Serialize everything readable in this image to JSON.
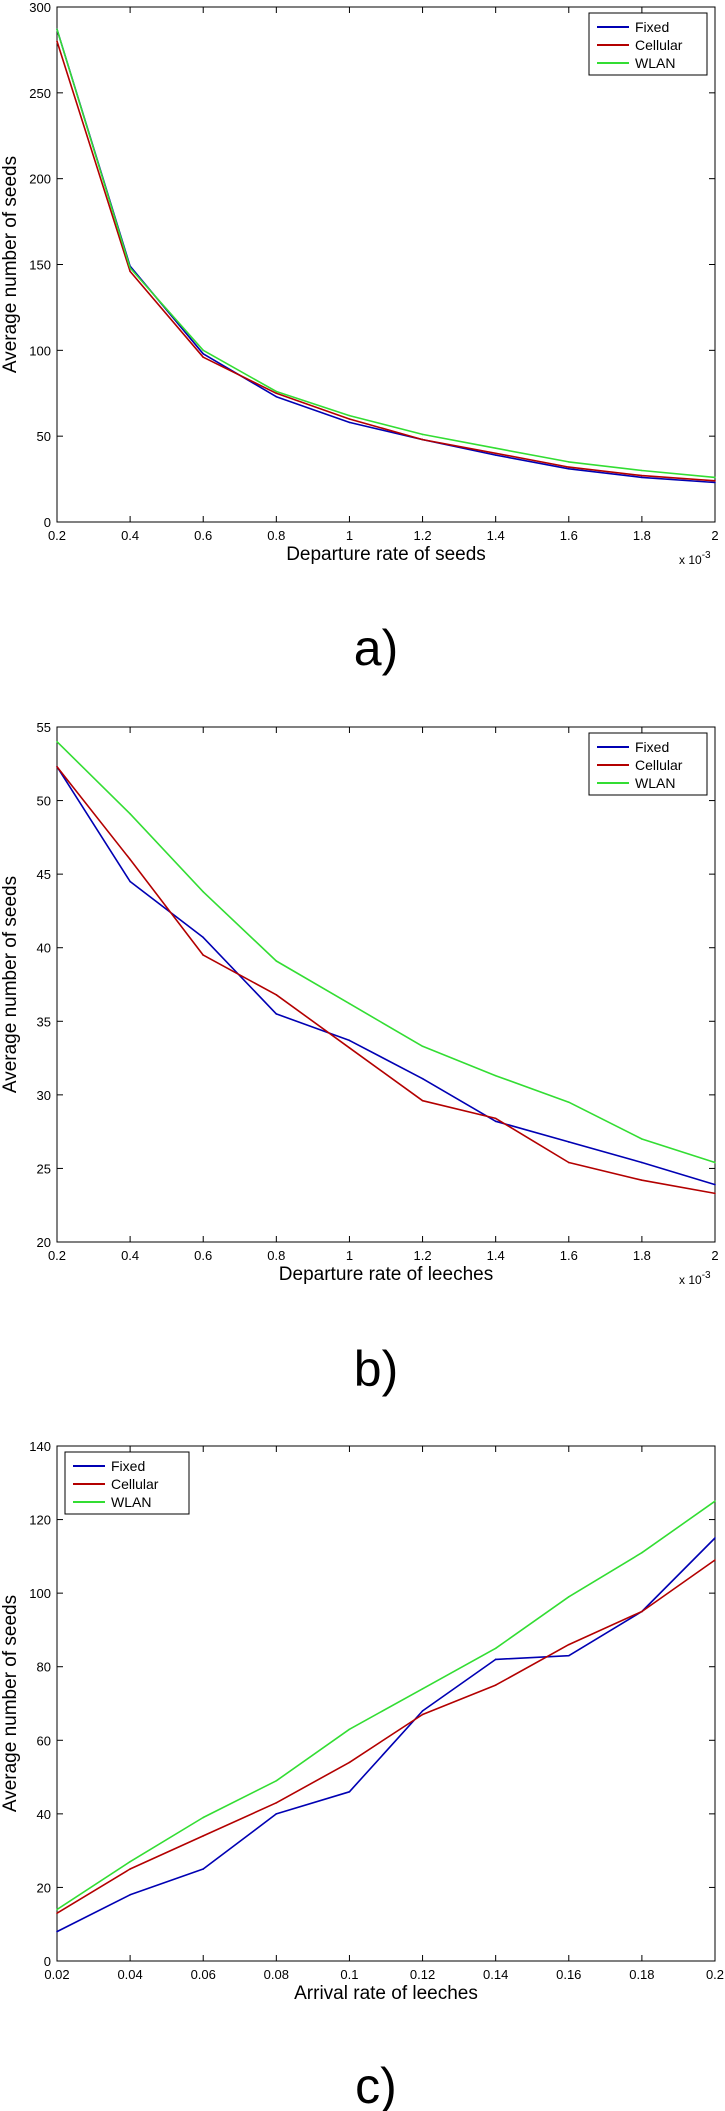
{
  "chart_data": [
    {
      "type": "line",
      "panel_label": "a)",
      "xlabel": "Departure rate of seeds",
      "ylabel": "Average number of seeds",
      "x_exponent_label": "x 10",
      "x_exponent_power": "-3",
      "xlim": [
        0.2,
        2
      ],
      "ylim": [
        0,
        300
      ],
      "xticks": [
        "0.2",
        "0.4",
        "0.6",
        "0.8",
        "1",
        "1.2",
        "1.4",
        "1.6",
        "1.8",
        "2"
      ],
      "yticks": [
        "0",
        "50",
        "100",
        "150",
        "200",
        "250",
        "300"
      ],
      "legend_position": "top-right",
      "grid": false,
      "x": [
        0.2,
        0.4,
        0.6,
        0.8,
        1.0,
        1.2,
        1.4,
        1.6,
        1.8,
        2.0
      ],
      "series": [
        {
          "name": "Fixed",
          "color": "#0000b3",
          "values": [
            287,
            149,
            98,
            73,
            58,
            48,
            39,
            31,
            26,
            23
          ]
        },
        {
          "name": "Cellular",
          "color": "#b30000",
          "values": [
            280,
            146,
            96,
            75,
            60,
            48,
            40,
            32,
            27,
            24
          ]
        },
        {
          "name": "WLAN",
          "color": "#33dd33",
          "values": [
            287,
            148,
            100,
            76,
            62,
            51,
            43,
            35,
            30,
            26
          ]
        }
      ]
    },
    {
      "type": "line",
      "panel_label": "b)",
      "xlabel": "Departure rate of leeches",
      "ylabel": "Average number of seeds",
      "x_exponent_label": "x 10",
      "x_exponent_power": "-3",
      "xlim": [
        0.2,
        2
      ],
      "ylim": [
        20,
        55
      ],
      "xticks": [
        "0.2",
        "0.4",
        "0.6",
        "0.8",
        "1",
        "1.2",
        "1.4",
        "1.6",
        "1.8",
        "2"
      ],
      "yticks": [
        "20",
        "25",
        "30",
        "35",
        "40",
        "45",
        "50",
        "55"
      ],
      "legend_position": "top-right",
      "grid": false,
      "x": [
        0.2,
        0.4,
        0.6,
        0.8,
        1.0,
        1.2,
        1.4,
        1.6,
        1.8,
        2.0
      ],
      "series": [
        {
          "name": "Fixed",
          "color": "#0000b3",
          "values": [
            52.3,
            44.5,
            40.7,
            35.5,
            33.7,
            31.1,
            28.2,
            26.8,
            25.4,
            23.9
          ]
        },
        {
          "name": "Cellular",
          "color": "#b30000",
          "values": [
            52.3,
            46.0,
            39.5,
            36.8,
            33.2,
            29.6,
            28.4,
            25.4,
            24.2,
            23.3
          ]
        },
        {
          "name": "WLAN",
          "color": "#33dd33",
          "values": [
            54.0,
            49.1,
            43.8,
            39.1,
            36.2,
            33.3,
            31.3,
            29.5,
            27.0,
            25.4
          ]
        }
      ]
    },
    {
      "type": "line",
      "panel_label": "c)",
      "xlabel": "Arrival rate of leeches",
      "ylabel": "Average number of seeds",
      "x_exponent_label": "",
      "x_exponent_power": "",
      "xlim": [
        0.02,
        0.2
      ],
      "ylim": [
        0,
        140
      ],
      "xticks": [
        "0.02",
        "0.04",
        "0.06",
        "0.08",
        "0.1",
        "0.12",
        "0.14",
        "0.16",
        "0.18",
        "0.2"
      ],
      "yticks": [
        "0",
        "20",
        "40",
        "60",
        "80",
        "100",
        "120",
        "140"
      ],
      "legend_position": "top-left",
      "grid": false,
      "x": [
        0.02,
        0.04,
        0.06,
        0.08,
        0.1,
        0.12,
        0.14,
        0.16,
        0.18,
        0.2
      ],
      "series": [
        {
          "name": "Fixed",
          "color": "#0000b3",
          "values": [
            8,
            18,
            25,
            40,
            46,
            68,
            82,
            83,
            95,
            115
          ]
        },
        {
          "name": "Cellular",
          "color": "#b30000",
          "values": [
            13,
            25,
            34,
            43,
            54,
            67,
            75,
            86,
            95,
            109
          ]
        },
        {
          "name": "WLAN",
          "color": "#33dd33",
          "values": [
            14,
            27,
            39,
            49,
            63,
            74,
            85,
            99,
            111,
            125
          ]
        }
      ]
    }
  ]
}
